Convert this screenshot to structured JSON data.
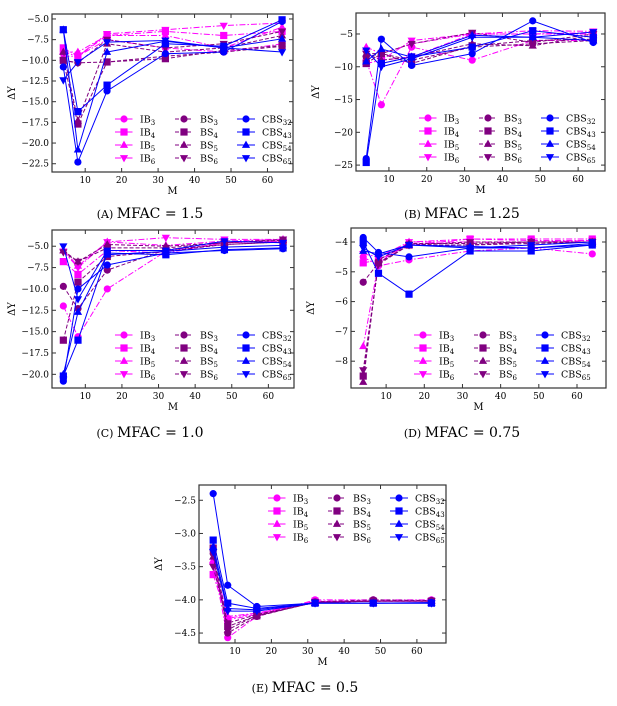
{
  "chart_data": [
    {
      "type": "line",
      "panel": "A",
      "caption_letter": "(A)",
      "title": "MFAC = 1.5",
      "xlabel": "M",
      "ylabel": "ΔY",
      "xlim": [
        0.9,
        67
      ],
      "ylim": [
        -23.5,
        -4.4
      ],
      "xticks": [
        10,
        20,
        30,
        40,
        50,
        60
      ],
      "yticks": [
        -5,
        -7.5,
        -10,
        -12.5,
        -15,
        -17.5,
        -20,
        -22.5
      ],
      "ytick_labels": [
        "-5.0",
        "-7.5",
        "-10.0",
        "-12.5",
        "-15.0",
        "-17.5",
        "-20.0",
        "-22.5"
      ],
      "legend_placement": "bottom-right",
      "x": [
        4,
        8,
        16,
        32,
        48,
        64
      ],
      "series": [
        {
          "name": "IB",
          "sub": "3",
          "values": [
            -9,
            -9.5,
            -7.5,
            -8.5,
            -9,
            -8
          ]
        },
        {
          "name": "IB",
          "sub": "4",
          "values": [
            -8.5,
            -9.5,
            -7,
            -6.5,
            -7,
            -6.5
          ]
        },
        {
          "name": "IB",
          "sub": "5",
          "values": [
            -9,
            -9,
            -7,
            -7,
            -8.5,
            -6
          ]
        },
        {
          "name": "IB",
          "sub": "6",
          "values": [
            -9.5,
            -9.5,
            -6.8,
            -6.3,
            -5.8,
            -5.5
          ]
        },
        {
          "name": "BS",
          "sub": "3",
          "values": [
            -10,
            -10.3,
            -10.2,
            -9.5,
            -9,
            -8.3
          ]
        },
        {
          "name": "BS",
          "sub": "4",
          "values": [
            -10,
            -17.7,
            -10.2,
            -9.8,
            -8.8,
            -8.2
          ]
        },
        {
          "name": "BS",
          "sub": "5",
          "values": [
            -9,
            -17.3,
            -8,
            -9,
            -8.5,
            -7
          ]
        },
        {
          "name": "BS",
          "sub": "6",
          "values": [
            -10,
            -10.3,
            -7.5,
            -8.5,
            -8,
            -6.5
          ]
        },
        {
          "name": "CBS",
          "sub": "32",
          "values": [
            -10.8,
            -22.3,
            -13.7,
            -9.2,
            -9,
            -5.3
          ]
        },
        {
          "name": "CBS",
          "sub": "43",
          "values": [
            -6.3,
            -16.2,
            -13,
            -8,
            -8.3,
            -5.1
          ]
        },
        {
          "name": "CBS",
          "sub": "54",
          "values": [
            -6.3,
            -20.8,
            -9,
            -7.7,
            -8.5,
            -7.4
          ]
        },
        {
          "name": "CBS",
          "sub": "65",
          "values": [
            -12.4,
            -10.2,
            -7.8,
            -7.6,
            -8.5,
            -9
          ]
        }
      ]
    },
    {
      "type": "line",
      "panel": "B",
      "caption_letter": "(B)",
      "title": "MFAC = 1.25",
      "xlabel": "M",
      "ylabel": "ΔY",
      "xlim": [
        1.3,
        67.1
      ],
      "ylim": [
        -25.9,
        -1.8
      ],
      "xticks": [
        10,
        20,
        30,
        40,
        50,
        60
      ],
      "yticks": [
        -5,
        -10,
        -15,
        -20,
        -25
      ],
      "ytick_labels": [
        "-5",
        "-10",
        "-15",
        "-20",
        "-25"
      ],
      "legend_placement": "bottom-right",
      "x": [
        4,
        8,
        16,
        32,
        48,
        64
      ],
      "series": [
        {
          "name": "IB",
          "sub": "3",
          "values": [
            -9,
            -15.8,
            -7,
            -9,
            -6,
            -6
          ]
        },
        {
          "name": "IB",
          "sub": "4",
          "values": [
            -9.5,
            -9,
            -8.5,
            -5,
            -5,
            -5
          ]
        },
        {
          "name": "IB",
          "sub": "5",
          "values": [
            -7,
            -8,
            -6.5,
            -5,
            -5,
            -4.8
          ]
        },
        {
          "name": "IB",
          "sub": "6",
          "values": [
            -8,
            -9,
            -6,
            -5,
            -4.5,
            -4.6
          ]
        },
        {
          "name": "BS",
          "sub": "3",
          "values": [
            -8.5,
            -8,
            -9,
            -7,
            -6.5,
            -6
          ]
        },
        {
          "name": "BS",
          "sub": "4",
          "values": [
            -9.5,
            -8,
            -9.5,
            -6.8,
            -6,
            -5.8
          ]
        },
        {
          "name": "BS",
          "sub": "5",
          "values": [
            -8,
            -9,
            -8.5,
            -6.5,
            -6.8,
            -5.2
          ]
        },
        {
          "name": "BS",
          "sub": "6",
          "values": [
            -8,
            -8,
            -6.5,
            -4.8,
            -6.3,
            -5
          ]
        },
        {
          "name": "CBS",
          "sub": "32",
          "values": [
            -24,
            -5.8,
            -9.8,
            -8,
            -3,
            -6.3
          ]
        },
        {
          "name": "CBS",
          "sub": "43",
          "values": [
            -24.6,
            -9.5,
            -8.5,
            -7,
            -4.5,
            -5.5
          ]
        },
        {
          "name": "CBS",
          "sub": "54",
          "values": [
            -9.2,
            -7.3,
            -8.5,
            -5.2,
            -5.5,
            -6
          ]
        },
        {
          "name": "CBS",
          "sub": "65",
          "values": [
            -7.5,
            -10,
            -8.8,
            -5.5,
            -5.5,
            -4.7
          ]
        }
      ]
    },
    {
      "type": "line",
      "panel": "C",
      "caption_letter": "(C)",
      "title": "MFAC = 1.0",
      "xlabel": "M",
      "ylabel": "ΔY",
      "xlim": [
        0.9,
        67
      ],
      "ylim": [
        -21.6,
        -3.1
      ],
      "xticks": [
        10,
        20,
        30,
        40,
        50,
        60
      ],
      "yticks": [
        -5,
        -7.5,
        -10,
        -12.5,
        -15,
        -17.5,
        -20
      ],
      "ytick_labels": [
        "-5.0",
        "-7.5",
        "-10.0",
        "-12.5",
        "-15.0",
        "-17.5",
        "-20.0"
      ],
      "legend_placement": "bottom-right",
      "x": [
        4,
        8,
        16,
        32,
        48,
        64
      ],
      "series": [
        {
          "name": "IB",
          "sub": "3",
          "values": [
            -12,
            -15.6,
            -10,
            -5.6,
            -4.6,
            -4.4
          ]
        },
        {
          "name": "IB",
          "sub": "4",
          "values": [
            -6.8,
            -8.3,
            -5.5,
            -5.8,
            -4.6,
            -4.4
          ]
        },
        {
          "name": "IB",
          "sub": "5",
          "values": [
            -5.5,
            -7.3,
            -4.5,
            -4.9,
            -4.4,
            -4.2
          ]
        },
        {
          "name": "IB",
          "sub": "6",
          "values": [
            -5.6,
            -7.5,
            -4.5,
            -4,
            -4.2,
            -4.2
          ]
        },
        {
          "name": "BS",
          "sub": "3",
          "values": [
            -9.7,
            -12.3,
            -7.8,
            -5.4,
            -4.8,
            -4.5
          ]
        },
        {
          "name": "BS",
          "sub": "4",
          "values": [
            -16,
            -9.2,
            -6.2,
            -5.6,
            -4.8,
            -4.5
          ]
        },
        {
          "name": "BS",
          "sub": "5",
          "values": [
            -5.5,
            -6.8,
            -4.8,
            -5,
            -4.6,
            -4.3
          ]
        },
        {
          "name": "BS",
          "sub": "6",
          "values": [
            -5.7,
            -6.8,
            -5.2,
            -5.2,
            -4.6,
            -4.2
          ]
        },
        {
          "name": "CBS",
          "sub": "32",
          "values": [
            -20.8,
            -10,
            -7.2,
            -5.8,
            -5.5,
            -5.3
          ]
        },
        {
          "name": "CBS",
          "sub": "43",
          "values": [
            -20.2,
            -16,
            -5.8,
            -6,
            -5.4,
            -5.2
          ]
        },
        {
          "name": "CBS",
          "sub": "54",
          "values": [
            -20,
            -12.7,
            -6,
            -5.6,
            -5.1,
            -4.9
          ]
        },
        {
          "name": "CBS",
          "sub": "65",
          "values": [
            -5,
            -11.2,
            -5.5,
            -5.5,
            -4.4,
            -4.6
          ]
        }
      ]
    },
    {
      "type": "line",
      "panel": "D",
      "caption_letter": "(D)",
      "title": "MFAC = 0.75",
      "xlabel": "M",
      "ylabel": "ΔY",
      "xlim": [
        0.8,
        67.6
      ],
      "ylim": [
        -8.9,
        -3.53
      ],
      "xticks": [
        10,
        20,
        30,
        40,
        50,
        60
      ],
      "yticks": [
        -4,
        -5,
        -6,
        -7,
        -8
      ],
      "ytick_labels": [
        "-4",
        "-5",
        "-6",
        "-7",
        "-8"
      ],
      "legend_placement": "bottom-right",
      "x": [
        4,
        8,
        16,
        32,
        48,
        64
      ],
      "series": [
        {
          "name": "IB",
          "sub": "3",
          "values": [
            -4.5,
            -4.8,
            -4.6,
            -4.3,
            -4.2,
            -4.4
          ]
        },
        {
          "name": "IB",
          "sub": "4",
          "values": [
            -4.7,
            -4.6,
            -4.1,
            -3.9,
            -3.9,
            -3.9
          ]
        },
        {
          "name": "IB",
          "sub": "5",
          "values": [
            -7.5,
            -4.7,
            -4.0,
            -4.0,
            -4.0,
            -3.95
          ]
        },
        {
          "name": "IB",
          "sub": "6",
          "values": [
            -4.4,
            -4.5,
            -4.0,
            -3.9,
            -3.95,
            -3.95
          ]
        },
        {
          "name": "BS",
          "sub": "3",
          "values": [
            -5.35,
            -4.7,
            -4.1,
            -4.1,
            -4.0,
            -4.0
          ]
        },
        {
          "name": "BS",
          "sub": "4",
          "values": [
            -8.5,
            -4.7,
            -4.1,
            -4.1,
            -4.05,
            -4.0
          ]
        },
        {
          "name": "BS",
          "sub": "5",
          "values": [
            -8.7,
            -4.6,
            -4.05,
            -4.05,
            -4.0,
            -4.0
          ]
        },
        {
          "name": "BS",
          "sub": "6",
          "values": [
            -8.3,
            -4.75,
            -4.1,
            -4.0,
            -4.0,
            -4.0
          ]
        },
        {
          "name": "CBS",
          "sub": "32",
          "values": [
            -3.85,
            -4.35,
            -4.5,
            -4.2,
            -4.2,
            -4.1
          ]
        },
        {
          "name": "CBS",
          "sub": "43",
          "values": [
            -4.0,
            -5.05,
            -5.75,
            -4.3,
            -4.3,
            -4.1
          ]
        },
        {
          "name": "CBS",
          "sub": "54",
          "values": [
            -4.3,
            -4.4,
            -4.1,
            -4.15,
            -4.2,
            -4.05
          ]
        },
        {
          "name": "CBS",
          "sub": "65",
          "values": [
            -4.2,
            -4.5,
            -4.1,
            -4.2,
            -4.1,
            -4.0
          ]
        }
      ]
    },
    {
      "type": "line",
      "panel": "E",
      "caption_letter": "(E)",
      "title": "MFAC = 0.5",
      "xlabel": "M",
      "ylabel": "ΔY",
      "xlim": [
        0.1,
        68
      ],
      "ylim": [
        -4.65,
        -2.27
      ],
      "xticks": [
        10,
        20,
        30,
        40,
        50,
        60
      ],
      "yticks": [
        -2.5,
        -3,
        -3.5,
        -4,
        -4.5
      ],
      "ytick_labels": [
        "-2.5",
        "-3.0",
        "-3.5",
        "-4.0",
        "-4.5"
      ],
      "legend_placement": "top-right",
      "x": [
        4,
        8,
        16,
        32,
        48,
        64
      ],
      "series": [
        {
          "name": "IB",
          "sub": "3",
          "values": [
            -3.45,
            -4.57,
            -4.25,
            -4.0,
            -4.0,
            -4.0
          ]
        },
        {
          "name": "IB",
          "sub": "4",
          "values": [
            -3.62,
            -4.3,
            -4.22,
            -4.02,
            -4.02,
            -4.02
          ]
        },
        {
          "name": "IB",
          "sub": "5",
          "values": [
            -3.4,
            -4.25,
            -4.2,
            -4.03,
            -4.02,
            -4.02
          ]
        },
        {
          "name": "IB",
          "sub": "6",
          "values": [
            -3.5,
            -4.28,
            -4.2,
            -4.03,
            -4.02,
            -4.02
          ]
        },
        {
          "name": "BS",
          "sub": "3",
          "values": [
            -3.3,
            -4.5,
            -4.25,
            -4.03,
            -4.0,
            -4.01
          ]
        },
        {
          "name": "BS",
          "sub": "4",
          "values": [
            -3.22,
            -4.4,
            -4.24,
            -4.04,
            -4.02,
            -4.02
          ]
        },
        {
          "name": "BS",
          "sub": "5",
          "values": [
            -3.35,
            -4.45,
            -4.23,
            -4.04,
            -4.02,
            -4.02
          ]
        },
        {
          "name": "BS",
          "sub": "6",
          "values": [
            -3.5,
            -4.35,
            -4.22,
            -4.04,
            -4.02,
            -4.02
          ]
        },
        {
          "name": "CBS",
          "sub": "32",
          "values": [
            -2.4,
            -3.78,
            -4.1,
            -4.05,
            -4.05,
            -4.04
          ]
        },
        {
          "name": "CBS",
          "sub": "43",
          "values": [
            -3.1,
            -4.05,
            -4.13,
            -4.05,
            -4.05,
            -4.05
          ]
        },
        {
          "name": "CBS",
          "sub": "54",
          "values": [
            -3.2,
            -4.13,
            -4.15,
            -4.05,
            -4.05,
            -4.05
          ]
        },
        {
          "name": "CBS",
          "sub": "65",
          "values": [
            -3.28,
            -4.17,
            -4.17,
            -4.05,
            -4.05,
            -4.05
          ]
        }
      ]
    }
  ],
  "colors": {
    "IB": "#ff00ff",
    "BS": "#800080",
    "CBS": "#0000ff"
  }
}
